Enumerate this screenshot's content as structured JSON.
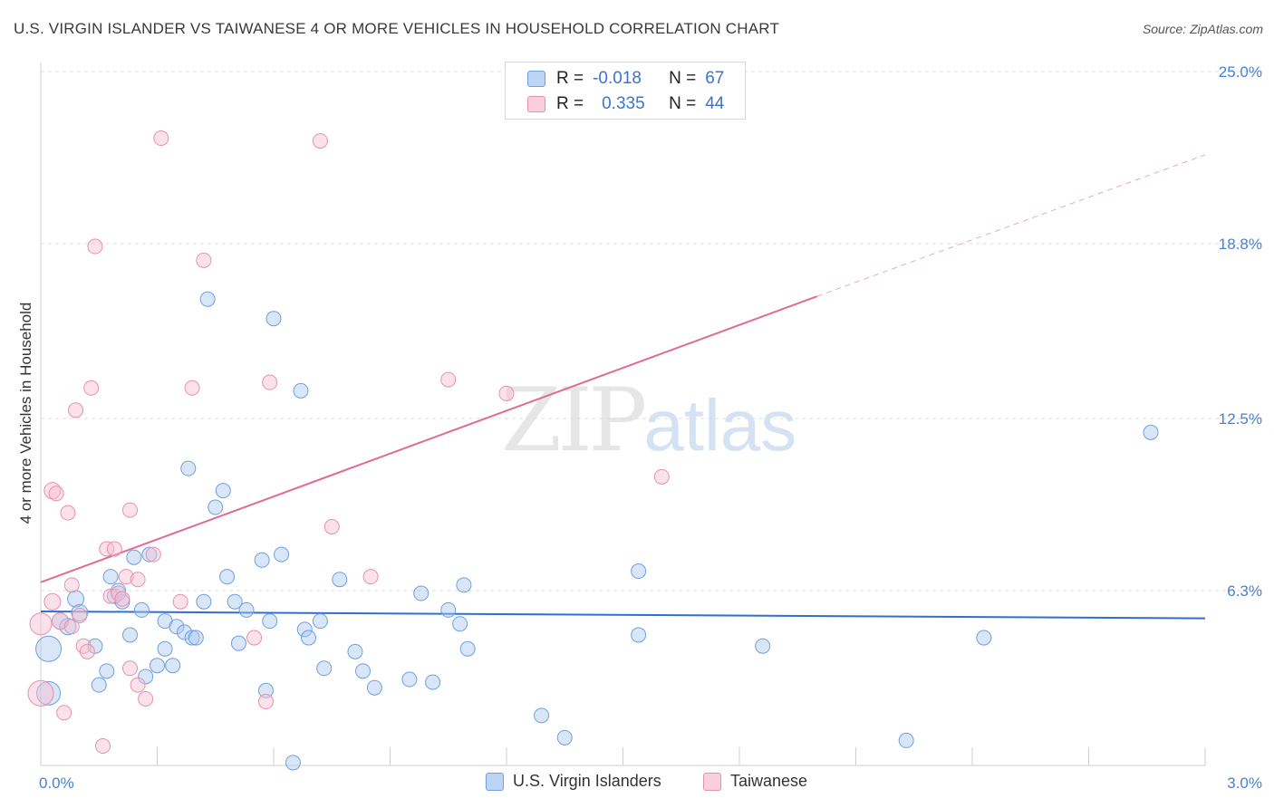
{
  "title": "U.S. VIRGIN ISLANDER VS TAIWANESE 4 OR MORE VEHICLES IN HOUSEHOLD CORRELATION CHART",
  "source": "Source: ZipAtlas.com",
  "watermark": {
    "zip": "ZIP",
    "atlas": "atlas"
  },
  "legend": {
    "r_label": "R =",
    "n_label": "N =",
    "rows": [
      {
        "r": "-0.018",
        "n": "67",
        "color": "#a9c8f0",
        "stroke": "#6f9fe0"
      },
      {
        "r": "0.335",
        "n": "44",
        "color": "#f7bfd0",
        "stroke": "#e890ad"
      }
    ]
  },
  "bottom_legend": [
    "U.S. Virgin Islanders",
    "Taiwanese"
  ],
  "chart_data": {
    "type": "scatter",
    "title": "U.S. VIRGIN ISLANDER VS TAIWANESE 4 OR MORE VEHICLES IN HOUSEHOLD CORRELATION CHART",
    "xlabel": "",
    "ylabel": "4 or more Vehicles in Household",
    "xlim": [
      0,
      3.0
    ],
    "ylim": [
      0,
      25.0
    ],
    "x_tick_labels": [
      "0.0%",
      "3.0%"
    ],
    "y_ticks": [
      6.3,
      12.5,
      18.8,
      25.0
    ],
    "y_tick_labels": [
      "6.3%",
      "12.5%",
      "18.8%",
      "25.0%"
    ],
    "grid": true,
    "series": [
      {
        "name": "U.S. Virgin Islanders",
        "color": "#6f9fe0",
        "fill": "#a9c8f0",
        "trend": {
          "x0": 0.0,
          "y0": 5.55,
          "x1": 3.0,
          "y1": 5.3,
          "color": "#2f6fd0"
        },
        "points": [
          [
            0.02,
            4.2,
            14
          ],
          [
            0.02,
            2.6,
            13
          ],
          [
            0.05,
            5.2,
            9
          ],
          [
            0.07,
            5.0,
            9
          ],
          [
            0.09,
            6.0,
            9
          ],
          [
            0.1,
            5.5,
            9
          ],
          [
            0.14,
            4.3,
            8
          ],
          [
            0.15,
            2.9,
            8
          ],
          [
            0.17,
            3.4,
            8
          ],
          [
            0.18,
            6.8,
            8
          ],
          [
            0.19,
            6.1,
            8
          ],
          [
            0.2,
            6.3,
            8
          ],
          [
            0.21,
            5.9,
            8
          ],
          [
            0.23,
            4.7,
            8
          ],
          [
            0.24,
            7.5,
            8
          ],
          [
            0.26,
            5.6,
            8
          ],
          [
            0.27,
            3.2,
            8
          ],
          [
            0.28,
            7.6,
            8
          ],
          [
            0.3,
            3.6,
            8
          ],
          [
            0.32,
            5.2,
            8
          ],
          [
            0.32,
            4.2,
            8
          ],
          [
            0.34,
            3.6,
            8
          ],
          [
            0.35,
            5.0,
            8
          ],
          [
            0.37,
            4.8,
            8
          ],
          [
            0.38,
            10.7,
            8
          ],
          [
            0.39,
            4.6,
            8
          ],
          [
            0.4,
            4.6,
            8
          ],
          [
            0.42,
            5.9,
            8
          ],
          [
            0.43,
            16.8,
            8
          ],
          [
            0.45,
            9.3,
            8
          ],
          [
            0.47,
            9.9,
            8
          ],
          [
            0.48,
            6.8,
            8
          ],
          [
            0.5,
            5.9,
            8
          ],
          [
            0.51,
            4.4,
            8
          ],
          [
            0.53,
            5.6,
            8
          ],
          [
            0.57,
            7.4,
            8
          ],
          [
            0.58,
            2.7,
            8
          ],
          [
            0.59,
            5.2,
            8
          ],
          [
            0.6,
            16.1,
            8
          ],
          [
            0.62,
            7.6,
            8
          ],
          [
            0.65,
            0.1,
            8
          ],
          [
            0.67,
            13.5,
            8
          ],
          [
            0.68,
            4.9,
            8
          ],
          [
            0.69,
            4.6,
            8
          ],
          [
            0.72,
            5.2,
            8
          ],
          [
            0.73,
            3.5,
            8
          ],
          [
            0.77,
            6.7,
            8
          ],
          [
            0.81,
            4.1,
            8
          ],
          [
            0.83,
            3.4,
            8
          ],
          [
            0.86,
            2.8,
            8
          ],
          [
            0.95,
            3.1,
            8
          ],
          [
            0.98,
            6.2,
            8
          ],
          [
            1.01,
            3.0,
            8
          ],
          [
            1.05,
            5.6,
            8
          ],
          [
            1.08,
            5.1,
            8
          ],
          [
            1.09,
            6.5,
            8
          ],
          [
            1.1,
            4.2,
            8
          ],
          [
            1.29,
            1.8,
            8
          ],
          [
            1.35,
            1.0,
            8
          ],
          [
            1.54,
            7.0,
            8
          ],
          [
            1.54,
            4.7,
            8
          ],
          [
            1.86,
            4.3,
            8
          ],
          [
            2.23,
            0.9,
            8
          ],
          [
            2.43,
            4.6,
            8
          ],
          [
            2.86,
            12.0,
            8
          ]
        ]
      },
      {
        "name": "Taiwanese",
        "color": "#e890ad",
        "fill": "#f7bfd0",
        "trend": {
          "x0": 0.0,
          "y0": 6.6,
          "x1": 2.0,
          "y1": 16.9,
          "x2": 3.0,
          "y2": 22.0,
          "color": "#e06c94"
        },
        "points": [
          [
            0.0,
            2.6,
            14
          ],
          [
            0.0,
            5.1,
            12
          ],
          [
            0.03,
            5.9,
            9
          ],
          [
            0.03,
            9.9,
            9
          ],
          [
            0.04,
            9.8,
            8
          ],
          [
            0.05,
            5.2,
            9
          ],
          [
            0.06,
            1.9,
            8
          ],
          [
            0.07,
            9.1,
            8
          ],
          [
            0.08,
            5.0,
            8
          ],
          [
            0.08,
            6.5,
            8
          ],
          [
            0.09,
            12.8,
            8
          ],
          [
            0.1,
            5.4,
            8
          ],
          [
            0.11,
            4.3,
            8
          ],
          [
            0.12,
            4.1,
            8
          ],
          [
            0.13,
            13.6,
            8
          ],
          [
            0.14,
            18.7,
            8
          ],
          [
            0.16,
            0.7,
            8
          ],
          [
            0.17,
            7.8,
            8
          ],
          [
            0.18,
            6.1,
            8
          ],
          [
            0.19,
            7.8,
            8
          ],
          [
            0.2,
            6.2,
            8
          ],
          [
            0.21,
            6.0,
            8
          ],
          [
            0.22,
            6.8,
            8
          ],
          [
            0.23,
            3.5,
            8
          ],
          [
            0.23,
            9.2,
            8
          ],
          [
            0.25,
            2.9,
            8
          ],
          [
            0.25,
            6.7,
            8
          ],
          [
            0.27,
            2.4,
            8
          ],
          [
            0.29,
            7.6,
            8
          ],
          [
            0.31,
            22.6,
            8
          ],
          [
            0.36,
            5.9,
            8
          ],
          [
            0.39,
            13.6,
            8
          ],
          [
            0.42,
            18.2,
            8
          ],
          [
            0.55,
            4.6,
            8
          ],
          [
            0.58,
            2.3,
            8
          ],
          [
            0.59,
            13.8,
            8
          ],
          [
            0.72,
            22.5,
            8
          ],
          [
            0.75,
            8.6,
            8
          ],
          [
            0.85,
            6.8,
            8
          ],
          [
            1.05,
            13.9,
            8
          ],
          [
            1.2,
            13.4,
            8
          ],
          [
            1.6,
            10.4,
            8
          ]
        ]
      }
    ]
  }
}
